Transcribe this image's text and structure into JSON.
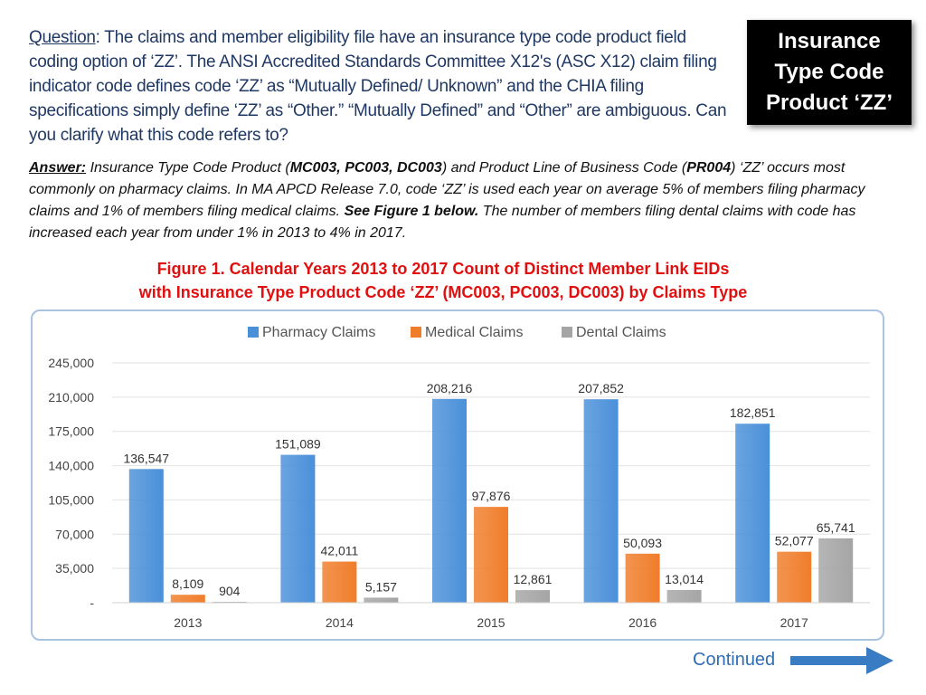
{
  "question": {
    "label": "Question",
    "text": ":  The claims and member eligibility file have an insurance type code product field coding option of ‘ZZ’. The ANSI Accredited Standards Committee X12's (ASC X12) claim filing indicator code defines code ‘ZZ’ as “Mutually Defined/ Unknown” and the CHIA filing specifications simply define ‘ZZ’ as “Other.” “Mutually Defined” and “Other” are ambiguous. Can you clarify what this code refers to?"
  },
  "tag": {
    "line1": "Insurance",
    "line2": "Type Code",
    "line3": "Product ‘ZZ’"
  },
  "answer": {
    "label": "Answer:",
    "p1": " Insurance Type Code Product  (",
    "codes1": "MC003, PC003, DC003",
    "p2": ") and Product Line of Business Code  (",
    "codes2": "PR004",
    "p3": ") ‘ZZ’ occurs most commonly on pharmacy claims. In MA APCD Release 7.0, code ‘ZZ’ is used each year on average 5% of members filing pharmacy claims and  1% of members filing medical claims.  ",
    "see": "See Figure 1 below.",
    "p4": " The number of members filing dental claims with code has increased each year from under 1% in 2013 to 4% in 2017."
  },
  "figure": {
    "line1": "Figure 1. Calendar Years 2013 to 2017 Count of Distinct Member Link EIDs",
    "line2": "with Insurance Type Product Code ‘ZZ’ (MC003, PC003, DC003) by Claims Type"
  },
  "chart_data": {
    "type": "bar",
    "categories": [
      "2013",
      "2014",
      "2015",
      "2016",
      "2017"
    ],
    "series": [
      {
        "name": "Pharmacy Claims",
        "values": [
          136547,
          151089,
          208216,
          207852,
          182851
        ],
        "labels": [
          "136,547",
          "151,089",
          "208,216",
          "207,852",
          "182,851"
        ],
        "color": "#4a90d9"
      },
      {
        "name": "Medical Claims",
        "values": [
          8109,
          42011,
          97876,
          50093,
          52077
        ],
        "labels": [
          "8,109",
          "42,011",
          "97,876",
          "50,093",
          "52,077"
        ],
        "color": "#f07d2a"
      },
      {
        "name": "Dental Claims",
        "values": [
          904,
          5157,
          12861,
          13014,
          65741
        ],
        "labels": [
          "904",
          "5,157",
          "12,861",
          "13,014",
          "65,741"
        ],
        "color": "#a5a5a5"
      }
    ],
    "yticks": [
      0,
      35000,
      70000,
      105000,
      140000,
      175000,
      210000,
      245000
    ],
    "ytick_labels": [
      "-",
      "35,000",
      "70,000",
      "105,000",
      "140,000",
      "175,000",
      "210,000",
      "245,000"
    ],
    "ylim": [
      0,
      245000
    ],
    "legend": "top-center",
    "grid": true
  },
  "footer": {
    "continued": "Continued",
    "arrow_color": "#3a7cc4"
  }
}
